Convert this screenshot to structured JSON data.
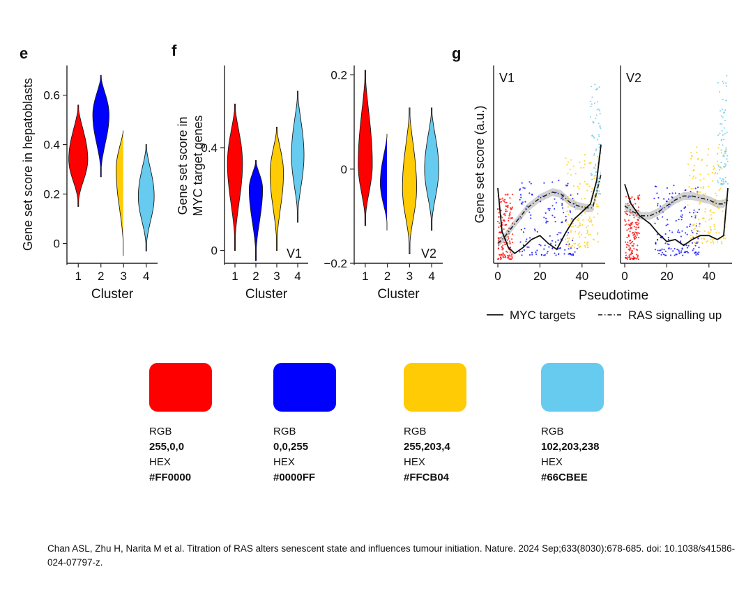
{
  "chart_data": [
    {
      "panel_letter": "e",
      "type": "violin",
      "xlabel": "Cluster",
      "ylabel": "Gene set score in hepatoblasts",
      "categories": [
        "1",
        "2",
        "3",
        "4"
      ],
      "ylim": [
        -0.08,
        0.72
      ],
      "yticks": [
        0,
        0.2,
        0.4,
        0.6
      ],
      "ytick_labels": [
        "0",
        "0.2",
        "0.4",
        "0.6"
      ],
      "series": [
        {
          "category": "1",
          "color": "#FF0000",
          "min": 0.15,
          "max": 0.56,
          "median": 0.34,
          "max_half_width": 0.42
        },
        {
          "category": "2",
          "color": "#0000FF",
          "min": 0.27,
          "max": 0.68,
          "median": 0.52,
          "max_half_width": 0.36
        },
        {
          "category": "3",
          "color": "#FFCB04",
          "min": -0.05,
          "max": 0.47,
          "median": 0.3,
          "max_half_width": 0.33
        },
        {
          "category": "4",
          "color": "#66CBEE",
          "min": -0.03,
          "max": 0.4,
          "median": 0.19,
          "max_half_width": 0.35
        }
      ]
    },
    {
      "panel_letter": "f",
      "type": "violin",
      "xlabel": "Cluster",
      "ylabel": "Gene set score in MYC target genes",
      "ylabel_lines": [
        "Gene set score in",
        "MYC target genes"
      ],
      "label": "V1",
      "categories": [
        "1",
        "2",
        "3",
        "4"
      ],
      "ylim": [
        -0.05,
        0.72
      ],
      "yticks": [
        0,
        0.4
      ],
      "ytick_labels": [
        "0",
        "0.4"
      ],
      "series": [
        {
          "category": "1",
          "color": "#FF0000",
          "min": 0.0,
          "max": 0.57,
          "median": 0.34,
          "max_half_width": 0.36
        },
        {
          "category": "2",
          "color": "#0000FF",
          "min": -0.04,
          "max": 0.35,
          "median": 0.24,
          "max_half_width": 0.32
        },
        {
          "category": "3",
          "color": "#FFCB04",
          "min": 0.0,
          "max": 0.48,
          "median": 0.3,
          "max_half_width": 0.32
        },
        {
          "category": "4",
          "color": "#66CBEE",
          "min": 0.11,
          "max": 0.62,
          "median": 0.37,
          "max_half_width": 0.3
        }
      ]
    },
    {
      "type": "violin",
      "xlabel": "Cluster",
      "label": "V2",
      "categories": [
        "1",
        "2",
        "3",
        "4"
      ],
      "ylim": [
        -0.2,
        0.22
      ],
      "yticks": [
        -0.2,
        0,
        0.2
      ],
      "ytick_labels": [
        "−0.2",
        "0",
        "0.2"
      ],
      "series": [
        {
          "category": "1",
          "color": "#FF0000",
          "min": -0.12,
          "max": 0.21,
          "median": 0.01,
          "max_half_width": 0.32
        },
        {
          "category": "2",
          "color": "#0000FF",
          "min": -0.13,
          "max": 0.08,
          "median": -0.03,
          "max_half_width": 0.32
        },
        {
          "category": "3",
          "color": "#FFCB04",
          "min": -0.18,
          "max": 0.13,
          "median": -0.04,
          "max_half_width": 0.32
        },
        {
          "category": "4",
          "color": "#66CBEE",
          "min": -0.13,
          "max": 0.13,
          "median": 0.0,
          "max_half_width": 0.32
        }
      ]
    },
    {
      "panel_letter": "g",
      "type": "scatter",
      "xlabel": "Pseudotime",
      "ylabel": "Gene set score (a.u.)",
      "xticks": [
        0,
        20,
        40
      ],
      "xlim": [
        -2,
        51
      ],
      "ylim": [
        0,
        1
      ],
      "facets": [
        {
          "label": "V1",
          "myc_targets": [
            [
              0,
              0.38
            ],
            [
              2,
              0.16
            ],
            [
              5,
              0.08
            ],
            [
              8,
              0.05
            ],
            [
              12,
              0.08
            ],
            [
              16,
              0.12
            ],
            [
              20,
              0.14
            ],
            [
              24,
              0.1
            ],
            [
              28,
              0.07
            ],
            [
              32,
              0.15
            ],
            [
              36,
              0.22
            ],
            [
              40,
              0.26
            ],
            [
              44,
              0.3
            ],
            [
              47,
              0.42
            ],
            [
              49,
              0.6
            ]
          ],
          "ras_signalling_up": [
            [
              0,
              0.1
            ],
            [
              3,
              0.13
            ],
            [
              8,
              0.2
            ],
            [
              14,
              0.28
            ],
            [
              20,
              0.33
            ],
            [
              26,
              0.36
            ],
            [
              30,
              0.35
            ],
            [
              34,
              0.31
            ],
            [
              38,
              0.29
            ],
            [
              42,
              0.28
            ],
            [
              45,
              0.28
            ],
            [
              47,
              0.36
            ],
            [
              49,
              0.45
            ]
          ],
          "points": [
            {
              "color": "#FF0000",
              "x_range": [
                0,
                7
              ],
              "y_range": [
                0.02,
                0.35
              ]
            },
            {
              "color": "#0000FF",
              "x_range": [
                10,
                38
              ],
              "y_range": [
                0.04,
                0.42
              ]
            },
            {
              "color": "#FFCB04",
              "x_range": [
                32,
                48
              ],
              "y_range": [
                0.08,
                0.55
              ]
            },
            {
              "color": "#66CBEE",
              "x_range": [
                44,
                49
              ],
              "y_range": [
                0.35,
                0.92
              ]
            }
          ]
        },
        {
          "label": "V2",
          "myc_targets": [
            [
              0,
              0.4
            ],
            [
              3,
              0.3
            ],
            [
              7,
              0.24
            ],
            [
              12,
              0.2
            ],
            [
              16,
              0.15
            ],
            [
              20,
              0.11
            ],
            [
              24,
              0.12
            ],
            [
              28,
              0.09
            ],
            [
              32,
              0.12
            ],
            [
              36,
              0.14
            ],
            [
              40,
              0.14
            ],
            [
              44,
              0.12
            ],
            [
              47,
              0.14
            ],
            [
              49,
              0.38
            ]
          ],
          "ras_signalling_up": [
            [
              0,
              0.29
            ],
            [
              4,
              0.26
            ],
            [
              8,
              0.24
            ],
            [
              12,
              0.24
            ],
            [
              16,
              0.26
            ],
            [
              20,
              0.29
            ],
            [
              24,
              0.32
            ],
            [
              28,
              0.34
            ],
            [
              32,
              0.34
            ],
            [
              36,
              0.33
            ],
            [
              40,
              0.32
            ],
            [
              44,
              0.3
            ],
            [
              47,
              0.3
            ],
            [
              49,
              0.32
            ]
          ],
          "points": [
            {
              "color": "#FF0000",
              "x_range": [
                0,
                7
              ],
              "y_range": [
                0.02,
                0.35
              ]
            },
            {
              "color": "#0000FF",
              "x_range": [
                14,
                36
              ],
              "y_range": [
                0.04,
                0.4
              ]
            },
            {
              "color": "#FFCB04",
              "x_range": [
                30,
                48
              ],
              "y_range": [
                0.1,
                0.6
              ]
            },
            {
              "color": "#66CBEE",
              "x_range": [
                44,
                49
              ],
              "y_range": [
                0.4,
                0.95
              ]
            }
          ]
        }
      ],
      "legend": {
        "entries": [
          {
            "label": "MYC targets",
            "style": "solid"
          },
          {
            "label": "RAS signalling up",
            "style": "dashdot"
          }
        ],
        "placement": "bottom"
      }
    }
  ],
  "palette": [
    {
      "rgb_label": "RGB",
      "rgb": "255,0,0",
      "hex_label": "HEX",
      "hex": "#FF0000"
    },
    {
      "rgb_label": "RGB",
      "rgb": "0,0,255",
      "hex_label": "HEX",
      "hex": "#0000FF"
    },
    {
      "rgb_label": "RGB",
      "rgb": "255,203,4",
      "hex_label": "HEX",
      "hex": "#FFCB04"
    },
    {
      "rgb_label": "RGB",
      "rgb": "102,203,238",
      "hex_label": "HEX",
      "hex": "#66CBEE"
    }
  ],
  "citation": "Chan ASL, Zhu H, Narita M et al. Titration of RAS alters senescent state and influences tumour initiation. Nature. 2024 Sep;633(8030):678-685. doi: 10.1038/s41586-024-07797-z."
}
